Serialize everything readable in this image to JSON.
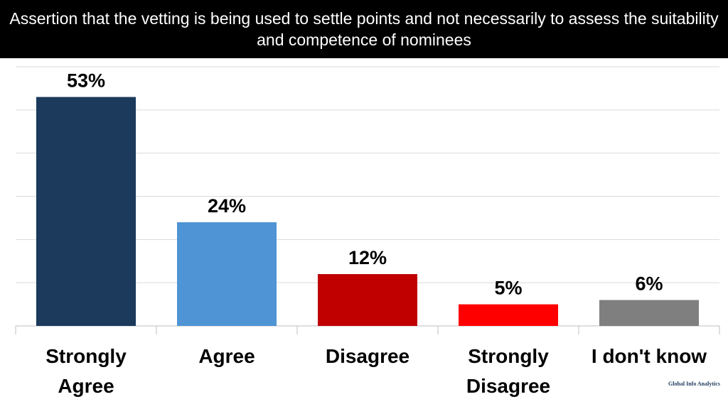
{
  "chart_data": {
    "type": "bar",
    "title": "Assertion that the vetting is being used to settle points and not necessarily to assess the suitability and competence of nominees",
    "categories": [
      "Strongly Agree",
      "Agree",
      "Disagree",
      "Strongly Disagree",
      "I don't know"
    ],
    "values": [
      53,
      24,
      12,
      5,
      6
    ],
    "value_labels": [
      "53%",
      "24%",
      "12%",
      "5%",
      "6%"
    ],
    "colors": [
      "#1b3a5c",
      "#4f94d4",
      "#c00000",
      "#ff0000",
      "#7f7f7f"
    ],
    "ylim": [
      0,
      60
    ],
    "yticks": [
      0,
      10,
      20,
      30,
      40,
      50,
      60
    ],
    "grid": true
  },
  "footer": {
    "logo": "Global Info Analytics"
  }
}
